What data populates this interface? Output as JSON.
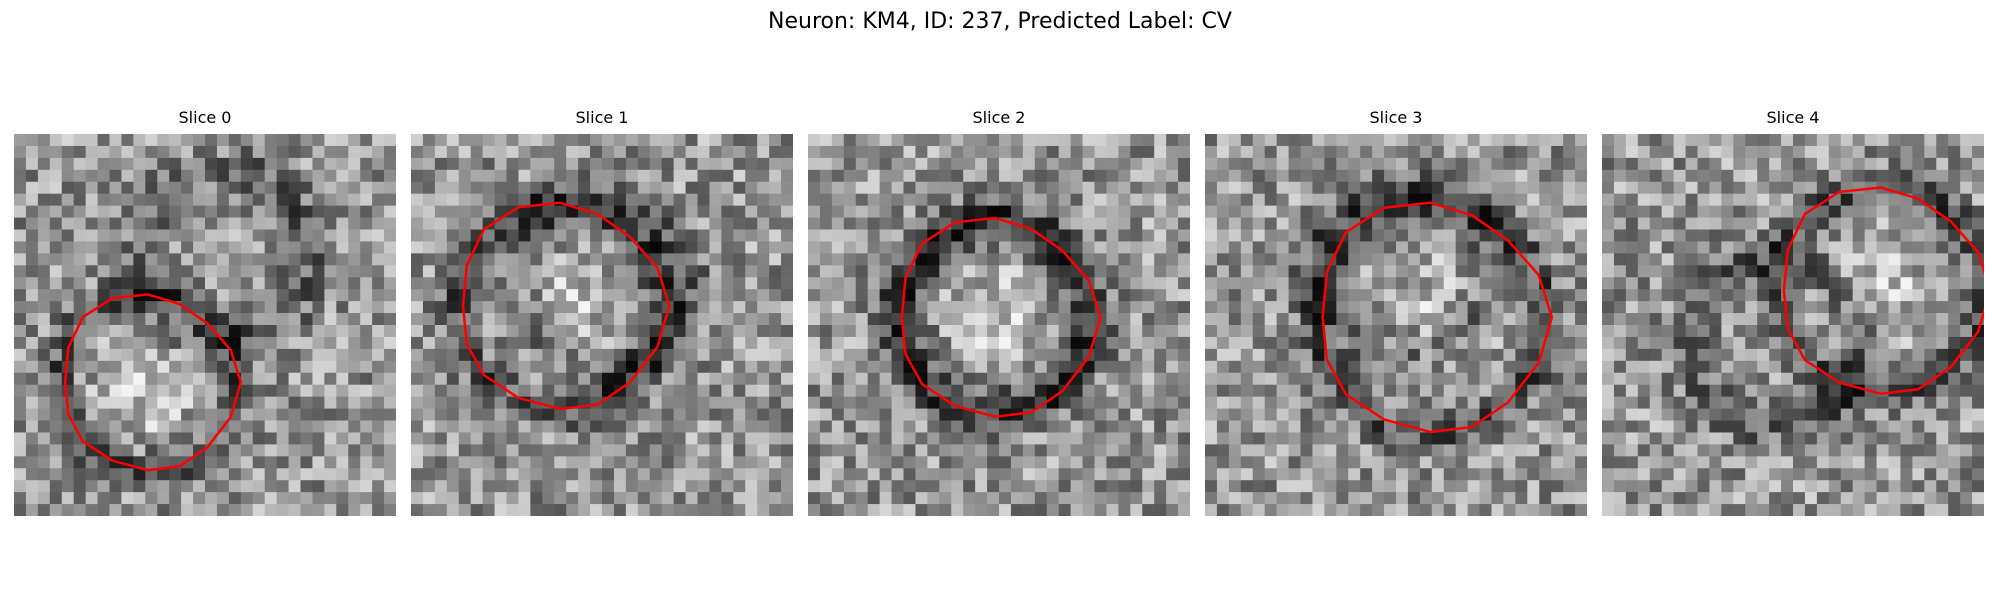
{
  "figure": {
    "title": "Neuron: KM4, ID: 237, Predicted Label: CV",
    "colors": {
      "background": "#ffffff",
      "contour": "#ff0000",
      "colormap": "gray"
    }
  },
  "panels": [
    {
      "title": "Slice 0",
      "seed": 11,
      "contour_center": [
        0.35,
        0.65
      ],
      "contour_radius": 0.23,
      "dark_ring": [
        0.55,
        0.32
      ]
    },
    {
      "title": "Slice 1",
      "seed": 23,
      "contour_center": [
        0.39,
        0.45
      ],
      "contour_radius": 0.27,
      "dark_ring": [
        0.5,
        0.4
      ]
    },
    {
      "title": "Slice 2",
      "seed": 37,
      "contour_center": [
        0.49,
        0.48
      ],
      "contour_radius": 0.26,
      "dark_ring": [
        0.49,
        0.48
      ]
    },
    {
      "title": "Slice 3",
      "seed": 41,
      "contour_center": [
        0.59,
        0.48
      ],
      "contour_radius": 0.3,
      "dark_ring": [
        0.52,
        0.35
      ]
    },
    {
      "title": "Slice 4",
      "seed": 53,
      "contour_center": [
        0.73,
        0.41
      ],
      "contour_radius": 0.27,
      "dark_ring": [
        0.45,
        0.55
      ]
    }
  ]
}
